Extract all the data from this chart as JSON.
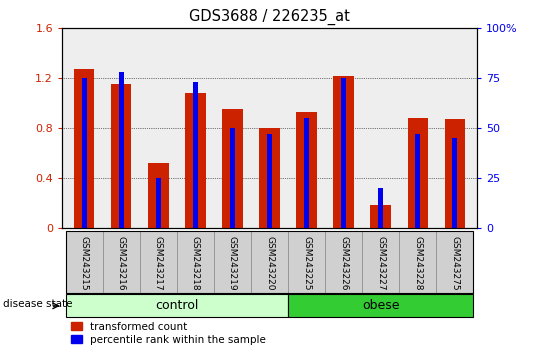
{
  "title": "GDS3688 / 226235_at",
  "samples": [
    "GSM243215",
    "GSM243216",
    "GSM243217",
    "GSM243218",
    "GSM243219",
    "GSM243220",
    "GSM243225",
    "GSM243226",
    "GSM243227",
    "GSM243228",
    "GSM243275"
  ],
  "red_values": [
    1.27,
    1.15,
    0.52,
    1.08,
    0.95,
    0.8,
    0.93,
    1.22,
    0.18,
    0.88,
    0.87
  ],
  "blue_values": [
    75,
    78,
    25,
    73,
    50,
    47,
    55,
    75,
    20,
    47,
    45
  ],
  "n_control": 6,
  "n_obese": 5,
  "ylim_left": [
    0,
    1.6
  ],
  "ylim_right": [
    0,
    100
  ],
  "yticks_left": [
    0,
    0.4,
    0.8,
    1.2,
    1.6
  ],
  "yticks_right": [
    0,
    25,
    50,
    75,
    100
  ],
  "ytick_labels_left": [
    "0",
    "0.4",
    "0.8",
    "1.2",
    "1.6"
  ],
  "ytick_labels_right": [
    "0",
    "25",
    "50",
    "75",
    "100%"
  ],
  "red_color": "#cc2200",
  "blue_color": "#0000ee",
  "red_bar_width": 0.55,
  "blue_bar_width": 0.13,
  "control_color": "#ccffcc",
  "obese_color": "#33cc33",
  "control_label": "control",
  "obese_label": "obese",
  "disease_state_label": "disease state",
  "legend_red": "transformed count",
  "legend_blue": "percentile rank within the sample",
  "plot_bg_color": "#eeeeee",
  "label_bg_color": "#d0d0d0"
}
